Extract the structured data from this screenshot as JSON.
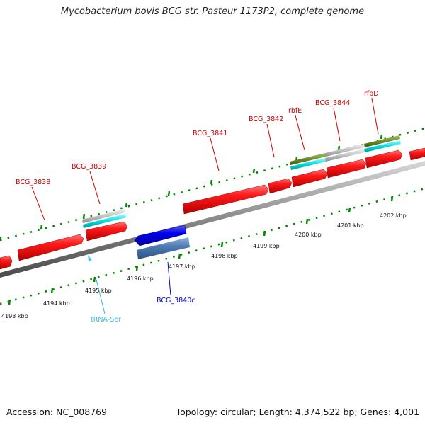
{
  "header": {
    "title": "Mycobacterium bovis BCG str. Pasteur 1173P2, complete genome"
  },
  "footer": {
    "accession": "Accession: NC_008769",
    "summary": "Topology: circular; Length: 4,374,522 bp; Genes: 4,001"
  },
  "colors": {
    "gene_red": "#ff0000",
    "gene_blue": "#0000dd",
    "gene_steel": "#4f7db5",
    "trna_cyan": "#3cc8f0",
    "cyan_feature": "#00e0e0",
    "olive_feature": "#6e8b2a",
    "gray_feature": "#c0c0c0",
    "tick_green": "#008800",
    "label_red": "#cc0000",
    "label_blue": "#0000cc"
  },
  "gene_labels": [
    {
      "id": "BCG_3838",
      "text": "BCG_3838",
      "color": "#cc0000"
    },
    {
      "id": "BCG_3839",
      "text": "BCG_3839",
      "color": "#cc0000"
    },
    {
      "id": "BCG_3841",
      "text": "BCG_3841",
      "color": "#cc0000"
    },
    {
      "id": "BCG_3842",
      "text": "BCG_3842",
      "color": "#cc0000"
    },
    {
      "id": "rbfE",
      "text": "rbfE",
      "color": "#cc0000"
    },
    {
      "id": "BCG_3844",
      "text": "BCG_3844",
      "color": "#cc0000"
    },
    {
      "id": "rfbD",
      "text": "rfbD",
      "color": "#cc0000"
    },
    {
      "id": "BCG_3840c",
      "text": "BCG_3840c",
      "color": "#0000cc"
    },
    {
      "id": "tRNA-Ser",
      "text": "tRNA-Ser",
      "color": "#3cb8e0"
    }
  ],
  "kbp_labels": [
    "4193 kbp",
    "4194 kbp",
    "4195 kbp",
    "4196 kbp",
    "4197 kbp",
    "4198 kbp",
    "4199 kbp",
    "4200 kbp",
    "4201 kbp",
    "4202 kbp"
  ]
}
